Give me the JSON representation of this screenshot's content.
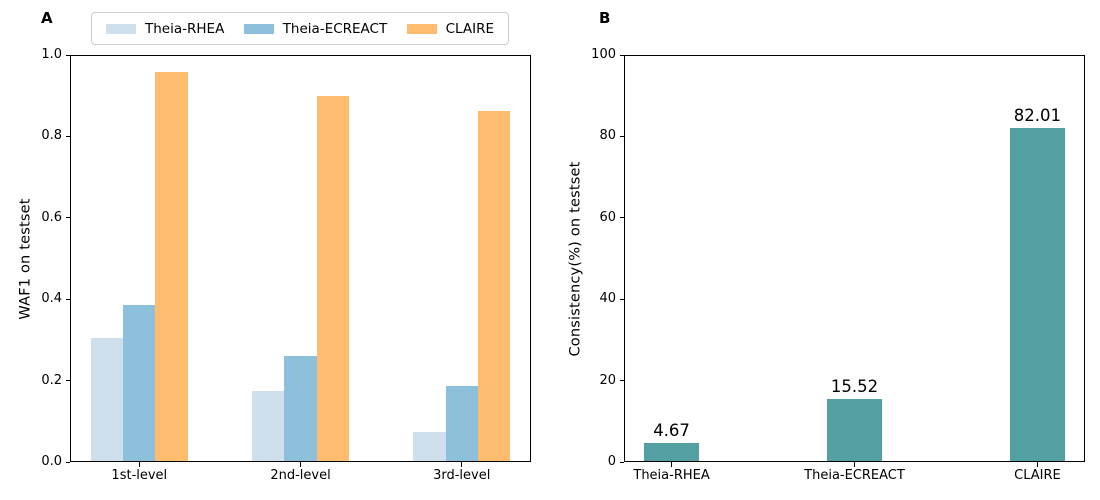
{
  "figure": {
    "background": "#ffffff",
    "panels": [
      "A",
      "B"
    ]
  },
  "chart_data": [
    {
      "type": "bar",
      "panel": "A",
      "title": "",
      "ylabel": "WAF1 on testset",
      "xlabel": "",
      "categories": [
        "1st-level",
        "2nd-level",
        "3rd-level"
      ],
      "series": [
        {
          "name": "Theia-RHEA",
          "color": "#cfe0ec",
          "values": [
            0.305,
            0.174,
            0.073
          ]
        },
        {
          "name": "Theia-ECREACT",
          "color": "#8cc0db",
          "values": [
            0.385,
            0.26,
            0.186
          ]
        },
        {
          "name": "CLAIRE",
          "color": "#fdbc6e",
          "values": [
            0.958,
            0.899,
            0.863
          ]
        }
      ],
      "ylim": [
        0,
        1.0
      ],
      "yticks": [
        0,
        0.2,
        0.4,
        0.6,
        0.8,
        1.0
      ],
      "ytick_labels": [
        "0.0",
        "0.2",
        "0.4",
        "0.6",
        "0.8",
        "1.0"
      ],
      "xlim": [
        -0.43,
        2.43
      ],
      "bar_width": 0.2,
      "grid": false,
      "legend": {
        "position": "top",
        "entries": [
          "Theia-RHEA",
          "Theia-ECREACT",
          "CLAIRE"
        ]
      }
    },
    {
      "type": "bar",
      "panel": "B",
      "title": "",
      "ylabel": "Consistency(%) on testset",
      "xlabel": "",
      "categories": [
        "Theia-RHEA",
        "Theia-ECREACT",
        "CLAIRE"
      ],
      "series": [
        {
          "color": "#52a0a2",
          "values": [
            4.67,
            15.52,
            82.01
          ]
        }
      ],
      "bar_labels": [
        "4.67",
        "15.52",
        "82.01"
      ],
      "ylim": [
        0,
        100
      ],
      "yticks": [
        0,
        20,
        40,
        60,
        80,
        100
      ],
      "ytick_labels": [
        "0",
        "20",
        "40",
        "60",
        "80",
        "100"
      ],
      "xlim": [
        -0.26,
        2.26
      ],
      "bar_width": 0.3,
      "grid": false,
      "legend": null
    }
  ]
}
